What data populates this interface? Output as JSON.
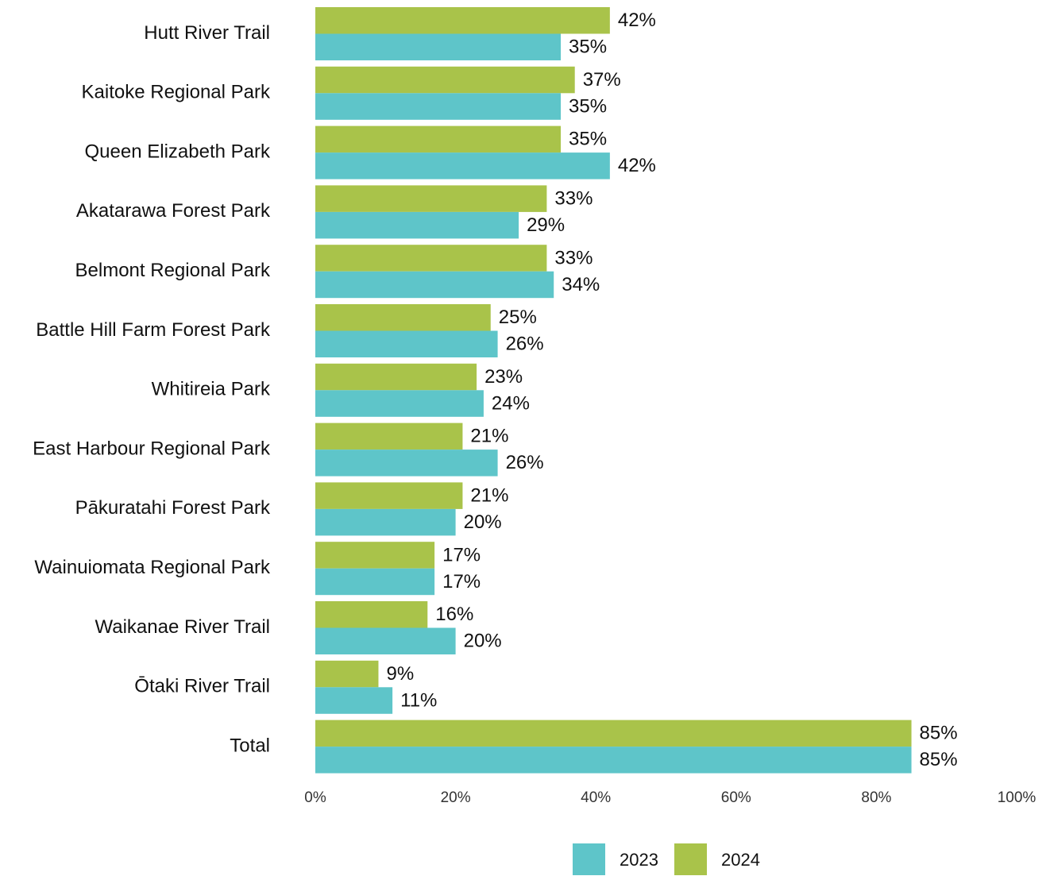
{
  "chart_data": {
    "type": "bar",
    "orientation": "horizontal",
    "categories": [
      "Hutt River Trail",
      "Kaitoke Regional Park",
      "Queen Elizabeth Park",
      "Akatarawa Forest Park",
      "Belmont Regional Park",
      "Battle Hill Farm Forest Park",
      "Whitireia Park",
      "East Harbour Regional Park",
      "Pākuratahi Forest Park",
      "Wainuiomata Regional Park",
      "Waikanae River Trail",
      "Ōtaki River Trail",
      "Total"
    ],
    "series": [
      {
        "name": "2023",
        "color": "#5ec5c9",
        "values": [
          35,
          35,
          42,
          29,
          34,
          26,
          24,
          26,
          20,
          17,
          20,
          11,
          85
        ],
        "value_labels": [
          "35%",
          "35%",
          "42%",
          "29%",
          "34%",
          "26%",
          "24%",
          "26%",
          "20%",
          "17%",
          "20%",
          "11%",
          "85%"
        ]
      },
      {
        "name": "2024",
        "color": "#a9c34a",
        "values": [
          42,
          37,
          35,
          33,
          33,
          25,
          23,
          21,
          21,
          17,
          16,
          9,
          85
        ],
        "value_labels": [
          "42%",
          "37%",
          "35%",
          "33%",
          "33%",
          "25%",
          "23%",
          "21%",
          "21%",
          "17%",
          "16%",
          "9%",
          "85%"
        ]
      }
    ],
    "xlim": [
      0,
      100
    ],
    "xticks": [
      {
        "value": 0,
        "label": "0%"
      },
      {
        "value": 20,
        "label": "20%"
      },
      {
        "value": 40,
        "label": "40%"
      },
      {
        "value": 60,
        "label": "60%"
      },
      {
        "value": 80,
        "label": "80%"
      },
      {
        "value": 100,
        "label": "100%"
      }
    ],
    "legend": "bottom"
  }
}
